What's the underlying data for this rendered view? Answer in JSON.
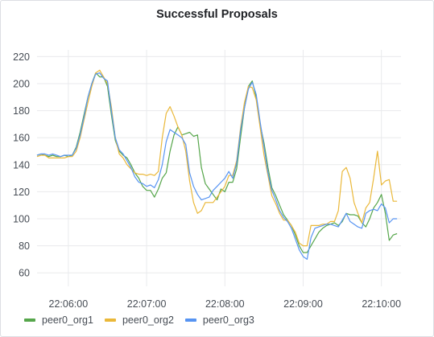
{
  "chart_data": {
    "type": "line",
    "title": "Successful Proposals",
    "xlabel": "",
    "ylabel": "",
    "ylim": [
      50,
      225
    ],
    "xlim_minutes": [
      0,
      4.65
    ],
    "y_ticks": [
      60,
      80,
      100,
      120,
      140,
      160,
      180,
      200,
      220
    ],
    "x_ticks": [
      {
        "label": "22:06:00",
        "minute": 0.4
      },
      {
        "label": "22:07:00",
        "minute": 1.4
      },
      {
        "label": "22:08:00",
        "minute": 2.4
      },
      {
        "label": "22:09:00",
        "minute": 3.4
      },
      {
        "label": "22:10:00",
        "minute": 4.4
      }
    ],
    "x_start": "22:05:36",
    "x_step_minutes": 0.05,
    "series": [
      {
        "name": "peer0_org1",
        "color": "#56a64b",
        "values": [
          147,
          148,
          147,
          146,
          147,
          146,
          146,
          147,
          146,
          147,
          153,
          164,
          177,
          190,
          200,
          208,
          205,
          205,
          198,
          177,
          158,
          150,
          147,
          145,
          140,
          134,
          130,
          124,
          121,
          121,
          116,
          122,
          130,
          134,
          150,
          162,
          168,
          162,
          163,
          164,
          161,
          162,
          138,
          126,
          122,
          118,
          114,
          122,
          120,
          127,
          127,
          137,
          160,
          182,
          198,
          202,
          190,
          170,
          156,
          138,
          123,
          117,
          110,
          103,
          99,
          95,
          88,
          80,
          75,
          75,
          80,
          85,
          90,
          93,
          95,
          96,
          97,
          95,
          98,
          104,
          103,
          103,
          102,
          97,
          94,
          100,
          108,
          112,
          118,
          104,
          84,
          88,
          89
        ]
      },
      {
        "name": "peer0_org2",
        "color": "#eab839",
        "values": [
          146,
          147,
          147,
          145,
          145,
          145,
          145,
          145,
          146,
          146,
          150,
          160,
          173,
          186,
          198,
          208,
          210,
          205,
          200,
          183,
          160,
          148,
          145,
          140,
          137,
          134,
          133,
          133,
          132,
          133,
          132,
          135,
          160,
          178,
          183,
          176,
          168,
          162,
          150,
          128,
          112,
          104,
          106,
          112,
          112,
          112,
          116,
          120,
          124,
          132,
          132,
          143,
          167,
          186,
          198,
          197,
          188,
          168,
          147,
          132,
          117,
          111,
          104,
          99,
          99,
          95,
          90,
          82,
          80,
          80,
          95,
          95,
          95,
          96,
          96,
          98,
          98,
          106,
          135,
          138,
          130,
          112,
          104,
          97,
          108,
          112,
          130,
          150,
          125,
          128,
          129,
          113,
          113
        ]
      },
      {
        "name": "peer0_org3",
        "color": "#5794f2",
        "values": [
          147,
          148,
          148,
          147,
          148,
          147,
          146,
          147,
          147,
          147,
          152,
          162,
          175,
          190,
          200,
          207,
          208,
          204,
          202,
          180,
          160,
          151,
          148,
          143,
          138,
          131,
          127,
          126,
          124,
          125,
          123,
          129,
          140,
          157,
          166,
          164,
          162,
          160,
          155,
          134,
          124,
          118,
          114,
          115,
          116,
          121,
          124,
          127,
          130,
          135,
          130,
          141,
          165,
          182,
          196,
          201,
          192,
          172,
          153,
          134,
          121,
          114,
          106,
          101,
          98,
          93,
          85,
          77,
          72,
          70,
          86,
          93,
          94,
          95,
          96,
          96,
          95,
          94,
          99,
          104,
          98,
          96,
          94,
          93,
          104,
          106,
          107,
          106,
          111,
          108,
          97,
          100,
          100
        ]
      }
    ]
  }
}
